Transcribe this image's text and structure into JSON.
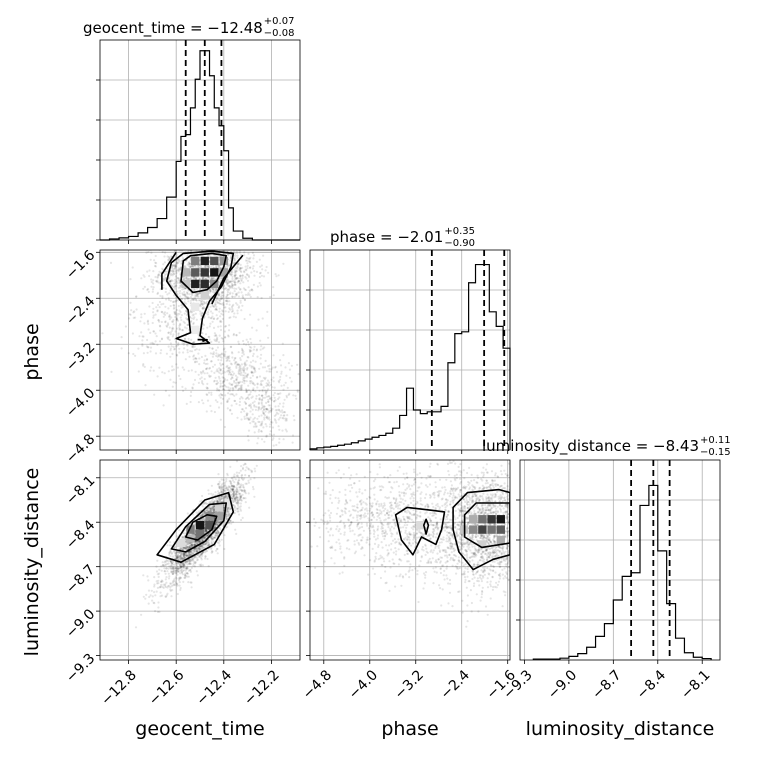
{
  "chart_data": {
    "type": "corner",
    "parameters": [
      {
        "name": "geocent_time",
        "median": -12.48,
        "plus": 0.07,
        "minus": 0.08,
        "title_main": "geocent_time = −12.48",
        "title_plus": "+0.07",
        "title_minus": "−0.08",
        "range": [
          -12.92,
          -12.08
        ],
        "ticks": [
          -12.8,
          -12.6,
          -12.4,
          -12.2
        ],
        "tick_labels": [
          "−12.8",
          "−12.6",
          "−12.4",
          "−12.2"
        ],
        "quantiles": [
          -12.56,
          -12.48,
          -12.41
        ],
        "hist_edges": [
          -12.92,
          -12.88,
          -12.84,
          -12.8,
          -12.76,
          -12.72,
          -12.68,
          -12.64,
          -12.6,
          -12.58,
          -12.56,
          -12.54,
          -12.52,
          -12.5,
          -12.48,
          -12.46,
          -12.44,
          -12.42,
          -12.4,
          -12.38,
          -12.36,
          -12.32,
          -12.28,
          -12.24,
          -12.2,
          -12.16,
          -12.12,
          -12.08
        ],
        "hist_counts": [
          0,
          0.3,
          0.6,
          1.0,
          2.0,
          3.5,
          6.0,
          12.0,
          22.0,
          29.0,
          29.5,
          37.0,
          45.0,
          53.0,
          53.0,
          46.0,
          37.0,
          32.0,
          25.0,
          9.0,
          2.5,
          0.5,
          0,
          0,
          0,
          0,
          0
        ],
        "hist_ylim": [
          0,
          56
        ]
      },
      {
        "name": "phase",
        "median": -2.01,
        "plus": 0.35,
        "minus": 0.9,
        "title_main": "phase = −2.01",
        "title_plus": "+0.35",
        "title_minus": "−0.90",
        "range": [
          -5.04,
          -1.56
        ],
        "ticks": [
          -4.8,
          -4.0,
          -3.2,
          -2.4,
          -1.6
        ],
        "tick_labels": [
          "−4.8",
          "−4.0",
          "−3.2",
          "−2.4",
          "−1.6"
        ],
        "quantiles": [
          -2.92,
          -2.01,
          -1.66
        ],
        "hist_edges": [
          -5.04,
          -4.92,
          -4.8,
          -4.68,
          -4.56,
          -4.44,
          -4.32,
          -4.2,
          -4.08,
          -3.96,
          -3.84,
          -3.72,
          -3.6,
          -3.48,
          -3.36,
          -3.24,
          -3.12,
          -3.0,
          -2.88,
          -2.76,
          -2.64,
          -2.52,
          -2.4,
          -2.28,
          -2.16,
          -2.04,
          -1.92,
          -1.8,
          -1.68,
          -1.56
        ],
        "hist_counts": [
          0.3,
          0.6,
          0.8,
          1.0,
          1.3,
          1.6,
          2.0,
          2.5,
          3.0,
          3.5,
          4.0,
          4.6,
          6.0,
          9.5,
          17.0,
          11.0,
          10.0,
          10.5,
          10.5,
          12.0,
          24.0,
          32.0,
          32.5,
          46.0,
          51.0,
          51.0,
          38.0,
          34.0,
          28.0
        ],
        "hist_ylim": [
          0,
          55
        ]
      },
      {
        "name": "luminosity_distance",
        "median": -8.43,
        "plus": 0.11,
        "minus": 0.15,
        "title_main": "luminosity_distance = −8.43",
        "title_plus": "+0.11",
        "title_minus": "−0.15",
        "range": [
          -9.33,
          -7.98
        ],
        "ticks": [
          -9.3,
          -9.0,
          -8.7,
          -8.4,
          -8.1
        ],
        "tick_labels": [
          "−9.3",
          "−9.0",
          "−8.7",
          "−8.4",
          "−8.1"
        ],
        "quantiles": [
          -8.58,
          -8.43,
          -8.32
        ],
        "hist_edges": [
          -9.24,
          -9.18,
          -9.12,
          -9.06,
          -9.0,
          -8.94,
          -8.88,
          -8.82,
          -8.76,
          -8.7,
          -8.64,
          -8.58,
          -8.52,
          -8.46,
          -8.4,
          -8.34,
          -8.28,
          -8.22,
          -8.16,
          -8.1,
          -8.04
        ],
        "hist_counts": [
          0.5,
          0.5,
          0.5,
          1.0,
          2.0,
          3.5,
          7.0,
          13.0,
          20.0,
          33.0,
          46.0,
          48.0,
          85.0,
          96.0,
          60.0,
          31.0,
          12.0,
          4.0,
          1.5,
          0.8
        ],
        "hist_ylim": [
          0,
          110
        ]
      }
    ],
    "scatter_pairs": [
      {
        "x": "geocent_time",
        "y": "phase",
        "description_free": true,
        "blobs": [
          {
            "cx": -12.47,
            "cy": -1.95,
            "sx": 0.1,
            "sy": 0.35,
            "rho": 0.0,
            "n": 1700
          },
          {
            "cx": -12.55,
            "cy": -2.9,
            "sx": 0.12,
            "sy": 0.45,
            "rho": 0.0,
            "n": 500
          },
          {
            "cx": -12.35,
            "cy": -3.75,
            "sx": 0.1,
            "sy": 0.3,
            "rho": 0.0,
            "n": 420
          },
          {
            "cx": -12.22,
            "cy": -4.35,
            "sx": 0.07,
            "sy": 0.28,
            "rho": 0.0,
            "n": 260
          }
        ],
        "density_cells": [
          {
            "x": -12.52,
            "y": -1.75,
            "v": 0.55
          },
          {
            "x": -12.48,
            "y": -1.75,
            "v": 0.95
          },
          {
            "x": -12.44,
            "y": -1.75,
            "v": 0.75
          },
          {
            "x": -12.4,
            "y": -1.75,
            "v": 0.45
          },
          {
            "x": -12.52,
            "y": -1.95,
            "v": 0.7
          },
          {
            "x": -12.48,
            "y": -1.95,
            "v": 0.85
          },
          {
            "x": -12.44,
            "y": -1.95,
            "v": 1.0
          },
          {
            "x": -12.4,
            "y": -1.95,
            "v": 0.4
          },
          {
            "x": -12.52,
            "y": -2.15,
            "v": 0.95
          },
          {
            "x": -12.48,
            "y": -2.15,
            "v": 0.9
          },
          {
            "x": -12.44,
            "y": -2.15,
            "v": 0.5
          },
          {
            "x": -12.56,
            "y": -1.95,
            "v": 0.3
          },
          {
            "x": -12.56,
            "y": -2.15,
            "v": 0.25
          },
          {
            "x": -12.48,
            "y": -2.35,
            "v": 0.2
          },
          {
            "x": -12.52,
            "y": -2.55,
            "v": 0.1
          },
          {
            "x": -12.52,
            "y": -2.95,
            "v": 0.08
          }
        ],
        "contours": [
          [
            [
              -12.57,
              -1.75
            ],
            [
              -12.54,
              -1.66
            ],
            [
              -12.45,
              -1.62
            ],
            [
              -12.39,
              -1.66
            ],
            [
              -12.4,
              -1.85
            ],
            [
              -12.43,
              -2.1
            ],
            [
              -12.47,
              -2.25
            ],
            [
              -12.53,
              -2.3
            ],
            [
              -12.58,
              -2.1
            ]
          ],
          [
            [
              -12.62,
              -1.78
            ],
            [
              -12.57,
              -1.62
            ],
            [
              -12.45,
              -1.58
            ],
            [
              -12.36,
              -1.62
            ],
            [
              -12.37,
              -1.85
            ],
            [
              -12.41,
              -2.2
            ],
            [
              -12.46,
              -2.45
            ],
            [
              -12.49,
              -2.75
            ],
            [
              -12.5,
              -3.05
            ],
            [
              -12.46,
              -3.18
            ],
            [
              -12.53,
              -3.2
            ],
            [
              -12.6,
              -3.1
            ],
            [
              -12.54,
              -3.0
            ],
            [
              -12.55,
              -2.6
            ],
            [
              -12.6,
              -2.35
            ],
            [
              -12.64,
              -2.1
            ]
          ],
          [
            [
              -12.51,
              -3.12
            ],
            [
              -12.47,
              -3.12
            ],
            [
              -12.49,
              -3.15
            ]
          ],
          [
            [
              -12.32,
              -1.65
            ],
            [
              -12.4,
              -2.05
            ],
            [
              -12.45,
              -2.5
            ]
          ],
          [
            [
              -12.6,
              -1.6
            ],
            [
              -12.66,
              -1.98
            ],
            [
              -12.66,
              -2.25
            ]
          ]
        ]
      },
      {
        "x": "geocent_time",
        "y": "luminosity_distance",
        "blobs": [
          {
            "cx": -12.48,
            "cy": -8.45,
            "sx": 0.08,
            "sy": 0.17,
            "rho": 0.88,
            "n": 2600
          }
        ],
        "density_cells": [
          {
            "x": -12.5,
            "y": -8.42,
            "v": 1.0
          },
          {
            "x": -12.46,
            "y": -8.42,
            "v": 0.75
          },
          {
            "x": -12.54,
            "y": -8.45,
            "v": 0.55
          },
          {
            "x": -12.5,
            "y": -8.48,
            "v": 0.6
          },
          {
            "x": -12.46,
            "y": -8.36,
            "v": 0.5
          },
          {
            "x": -12.42,
            "y": -8.36,
            "v": 0.4
          },
          {
            "x": -12.54,
            "y": -8.51,
            "v": 0.3
          },
          {
            "x": -12.42,
            "y": -8.3,
            "v": 0.2
          },
          {
            "x": -12.58,
            "y": -8.54,
            "v": 0.15
          },
          {
            "x": -12.38,
            "y": -8.27,
            "v": 0.12
          }
        ],
        "contours": [
          [
            [
              -12.56,
              -8.5
            ],
            [
              -12.53,
              -8.4
            ],
            [
              -12.47,
              -8.35
            ],
            [
              -12.43,
              -8.36
            ],
            [
              -12.45,
              -8.45
            ],
            [
              -12.51,
              -8.52
            ]
          ],
          [
            [
              -12.62,
              -8.58
            ],
            [
              -12.56,
              -8.43
            ],
            [
              -12.46,
              -8.28
            ],
            [
              -12.39,
              -8.27
            ],
            [
              -12.4,
              -8.39
            ],
            [
              -12.48,
              -8.53
            ],
            [
              -12.56,
              -8.6
            ]
          ],
          [
            [
              -12.68,
              -8.62
            ],
            [
              -12.6,
              -8.45
            ],
            [
              -12.48,
              -8.25
            ],
            [
              -12.38,
              -8.2
            ],
            [
              -12.36,
              -8.33
            ],
            [
              -12.44,
              -8.55
            ],
            [
              -12.58,
              -8.67
            ]
          ]
        ]
      },
      {
        "x": "phase",
        "y": "luminosity_distance",
        "blobs": [
          {
            "cx": -1.9,
            "cy": -8.45,
            "sx": 0.45,
            "sy": 0.2,
            "rho": 0.0,
            "n": 1800
          },
          {
            "cx": -3.1,
            "cy": -8.42,
            "sx": 0.6,
            "sy": 0.18,
            "rho": 0.0,
            "n": 700
          },
          {
            "cx": -4.2,
            "cy": -8.38,
            "sx": 0.5,
            "sy": 0.15,
            "rho": 0.0,
            "n": 300
          }
        ],
        "density_cells": [
          {
            "x": -1.72,
            "y": -8.38,
            "v": 1.0
          },
          {
            "x": -1.88,
            "y": -8.38,
            "v": 0.85
          },
          {
            "x": -2.04,
            "y": -8.45,
            "v": 0.8
          },
          {
            "x": -1.72,
            "y": -8.45,
            "v": 0.7
          },
          {
            "x": -1.88,
            "y": -8.45,
            "v": 0.6
          },
          {
            "x": -2.2,
            "y": -8.45,
            "v": 0.5
          },
          {
            "x": -2.04,
            "y": -8.38,
            "v": 0.6
          },
          {
            "x": -1.72,
            "y": -8.52,
            "v": 0.35
          },
          {
            "x": -2.2,
            "y": -8.38,
            "v": 0.35
          },
          {
            "x": -2.36,
            "y": -8.45,
            "v": 0.25
          },
          {
            "x": -3.12,
            "y": -8.42,
            "v": 0.15
          },
          {
            "x": -2.04,
            "y": -8.55,
            "v": 0.2
          }
        ],
        "contours": [
          [
            [
              -2.35,
              -8.35
            ],
            [
              -2.15,
              -8.27
            ],
            [
              -1.56,
              -8.27
            ],
            [
              -1.56,
              -8.54
            ],
            [
              -2.05,
              -8.57
            ],
            [
              -2.35,
              -8.5
            ]
          ],
          [
            [
              -2.55,
              -8.3
            ],
            [
              -2.3,
              -8.2
            ],
            [
              -1.75,
              -8.18
            ],
            [
              -1.56,
              -8.2
            ],
            [
              -1.56,
              -8.62
            ],
            [
              -1.85,
              -8.65
            ],
            [
              -2.2,
              -8.72
            ],
            [
              -2.45,
              -8.6
            ],
            [
              -2.55,
              -8.45
            ]
          ],
          [
            [
              -3.55,
              -8.35
            ],
            [
              -3.35,
              -8.3
            ],
            [
              -2.9,
              -8.32
            ],
            [
              -2.7,
              -8.33
            ],
            [
              -2.75,
              -8.45
            ],
            [
              -2.85,
              -8.55
            ],
            [
              -3.1,
              -8.5
            ],
            [
              -3.25,
              -8.62
            ],
            [
              -3.45,
              -8.52
            ]
          ],
          [
            [
              -3.02,
              -8.38
            ],
            [
              -2.98,
              -8.42
            ],
            [
              -3.02,
              -8.48
            ],
            [
              -3.06,
              -8.42
            ]
          ]
        ]
      }
    ]
  }
}
